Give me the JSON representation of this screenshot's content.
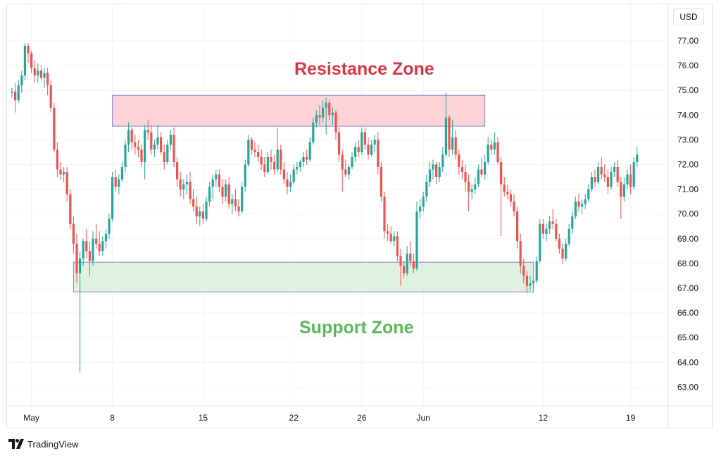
{
  "currency": "USD",
  "brand": "TradingView",
  "chart_data": {
    "type": "candlestick",
    "y_unit": "USD",
    "ylim": [
      62.3,
      78.3
    ],
    "y_ticks": [
      "77.00",
      "76.00",
      "75.00",
      "74.00",
      "73.00",
      "72.00",
      "71.00",
      "70.00",
      "69.00",
      "68.00",
      "67.00",
      "66.00",
      "65.00",
      "64.00",
      "63.00"
    ],
    "x_ticks": [
      "May",
      "8",
      "15",
      "22",
      "26",
      "Jun",
      "12",
      "19"
    ],
    "grid": true,
    "zones": [
      {
        "name": "Resistance Zone",
        "low": 73.55,
        "high": 74.8,
        "from_bar": 31,
        "to_bar": 146,
        "fill": "#fcd4d8",
        "stroke": "#8c7fc9",
        "label_color": "#dc3545"
      },
      {
        "name": "Support Zone",
        "low": 66.85,
        "high": 68.05,
        "from_bar": 19,
        "to_bar": 161,
        "fill": "#e0f2df",
        "stroke": "#8c7fc9",
        "label_color": "#5cb85c"
      }
    ],
    "candles": [
      [
        74.9,
        75.1,
        74.7,
        74.95
      ],
      [
        74.95,
        75.3,
        74.1,
        74.6
      ],
      [
        74.6,
        75.4,
        74.5,
        75.2
      ],
      [
        75.2,
        75.8,
        74.9,
        75.6
      ],
      [
        75.6,
        76.9,
        75.4,
        76.8
      ],
      [
        76.8,
        76.9,
        76.1,
        76.5
      ],
      [
        76.5,
        76.6,
        75.7,
        75.9
      ],
      [
        75.9,
        76.2,
        75.3,
        75.6
      ],
      [
        75.6,
        76.1,
        75.3,
        75.8
      ],
      [
        75.8,
        76.0,
        75.4,
        75.5
      ],
      [
        75.5,
        75.9,
        75.1,
        75.7
      ],
      [
        75.7,
        75.9,
        74.8,
        75.2
      ],
      [
        75.2,
        75.4,
        74.1,
        74.3
      ],
      [
        74.3,
        74.5,
        72.5,
        72.6
      ],
      [
        72.6,
        72.9,
        71.5,
        71.8
      ],
      [
        71.8,
        72.1,
        71.4,
        71.6
      ],
      [
        71.6,
        71.9,
        71.3,
        71.7
      ],
      [
        71.7,
        71.9,
        70.5,
        70.8
      ],
      [
        70.8,
        71.0,
        69.4,
        69.6
      ],
      [
        69.6,
        69.9,
        68.4,
        68.8
      ],
      [
        68.8,
        69.2,
        67.2,
        67.6
      ],
      [
        67.6,
        68.5,
        63.6,
        68.2
      ],
      [
        68.2,
        69.0,
        67.9,
        68.9
      ],
      [
        68.9,
        69.4,
        68.2,
        68.5
      ],
      [
        68.5,
        68.9,
        67.5,
        68.1
      ],
      [
        68.1,
        69.3,
        67.9,
        69.0
      ],
      [
        69.0,
        69.6,
        68.6,
        68.8
      ],
      [
        68.8,
        69.3,
        68.3,
        68.5
      ],
      [
        68.5,
        69.1,
        68.3,
        68.9
      ],
      [
        68.9,
        69.4,
        68.6,
        69.2
      ],
      [
        69.2,
        70.0,
        69.0,
        69.8
      ],
      [
        69.8,
        71.7,
        69.7,
        71.5
      ],
      [
        71.5,
        71.8,
        70.9,
        71.1
      ],
      [
        71.1,
        71.6,
        70.8,
        71.4
      ],
      [
        71.4,
        72.1,
        71.3,
        71.9
      ],
      [
        71.9,
        73.0,
        71.7,
        72.8
      ],
      [
        72.8,
        73.7,
        72.5,
        73.4
      ],
      [
        73.4,
        73.5,
        72.6,
        72.9
      ],
      [
        72.9,
        73.2,
        72.4,
        72.7
      ],
      [
        72.7,
        73.0,
        72.3,
        72.6
      ],
      [
        72.6,
        72.8,
        71.9,
        72.1
      ],
      [
        72.1,
        73.6,
        71.4,
        73.4
      ],
      [
        73.4,
        73.8,
        73.0,
        73.3
      ],
      [
        73.3,
        73.6,
        72.4,
        72.6
      ],
      [
        72.6,
        73.0,
        72.3,
        72.8
      ],
      [
        72.8,
        73.6,
        72.6,
        73.1
      ],
      [
        73.1,
        73.3,
        72.4,
        72.5
      ],
      [
        72.5,
        72.8,
        71.8,
        72.1
      ],
      [
        72.1,
        73.0,
        72.0,
        72.8
      ],
      [
        72.8,
        73.4,
        72.6,
        73.2
      ],
      [
        73.2,
        73.5,
        71.9,
        72.1
      ],
      [
        72.1,
        72.3,
        71.1,
        71.4
      ],
      [
        71.4,
        71.7,
        70.7,
        71.0
      ],
      [
        71.0,
        71.4,
        70.6,
        71.2
      ],
      [
        71.2,
        71.6,
        70.8,
        71.3
      ],
      [
        71.3,
        71.7,
        70.4,
        70.6
      ],
      [
        70.6,
        71.0,
        70.1,
        70.3
      ],
      [
        70.3,
        70.7,
        69.6,
        69.9
      ],
      [
        69.9,
        70.3,
        69.5,
        70.1
      ],
      [
        70.1,
        70.4,
        69.6,
        69.8
      ],
      [
        69.8,
        70.7,
        69.7,
        70.5
      ],
      [
        70.5,
        71.3,
        70.3,
        71.1
      ],
      [
        71.1,
        71.6,
        70.6,
        71.4
      ],
      [
        71.4,
        71.8,
        71.1,
        71.6
      ],
      [
        71.6,
        71.8,
        70.9,
        71.1
      ],
      [
        71.1,
        71.4,
        70.4,
        70.7
      ],
      [
        70.7,
        71.4,
        70.5,
        71.2
      ],
      [
        71.2,
        71.5,
        70.2,
        70.4
      ],
      [
        70.4,
        70.8,
        70.0,
        70.6
      ],
      [
        70.6,
        71.0,
        70.1,
        70.3
      ],
      [
        70.3,
        70.6,
        69.9,
        70.1
      ],
      [
        70.1,
        71.3,
        70.0,
        71.1
      ],
      [
        71.1,
        72.2,
        70.9,
        72.0
      ],
      [
        72.0,
        73.2,
        71.9,
        73.0
      ],
      [
        73.0,
        73.1,
        72.4,
        72.6
      ],
      [
        72.6,
        72.9,
        72.3,
        72.5
      ],
      [
        72.5,
        72.8,
        72.1,
        72.3
      ],
      [
        72.3,
        72.6,
        71.8,
        72.0
      ],
      [
        72.0,
        72.3,
        71.5,
        71.7
      ],
      [
        71.7,
        72.5,
        71.6,
        72.3
      ],
      [
        72.3,
        72.6,
        71.8,
        72.1
      ],
      [
        72.1,
        72.4,
        71.6,
        71.8
      ],
      [
        71.8,
        73.5,
        71.7,
        72.6
      ],
      [
        72.6,
        72.8,
        71.6,
        71.8
      ],
      [
        71.8,
        72.1,
        71.2,
        71.4
      ],
      [
        71.4,
        71.7,
        70.8,
        71.1
      ],
      [
        71.1,
        71.6,
        70.9,
        71.3
      ],
      [
        71.3,
        72.0,
        71.2,
        71.8
      ],
      [
        71.8,
        72.1,
        71.6,
        71.9
      ],
      [
        71.9,
        72.2,
        71.7,
        72.1
      ],
      [
        72.1,
        72.5,
        71.9,
        72.3
      ],
      [
        72.3,
        72.6,
        72.0,
        72.2
      ],
      [
        72.2,
        73.1,
        72.1,
        72.9
      ],
      [
        72.9,
        73.9,
        72.8,
        73.7
      ],
      [
        73.7,
        74.2,
        73.5,
        74.0
      ],
      [
        74.0,
        74.4,
        73.6,
        73.9
      ],
      [
        73.9,
        74.6,
        73.7,
        74.3
      ],
      [
        74.3,
        74.7,
        73.2,
        74.5
      ],
      [
        74.5,
        74.6,
        73.8,
        74.0
      ],
      [
        74.0,
        74.3,
        73.6,
        74.1
      ],
      [
        74.1,
        74.2,
        73.0,
        73.3
      ],
      [
        73.3,
        73.5,
        72.1,
        72.4
      ],
      [
        72.4,
        72.6,
        70.9,
        71.8
      ],
      [
        71.8,
        72.2,
        71.5,
        71.6
      ],
      [
        71.6,
        72.0,
        71.4,
        71.9
      ],
      [
        71.9,
        72.5,
        71.8,
        72.3
      ],
      [
        72.3,
        72.9,
        72.1,
        72.7
      ],
      [
        72.7,
        73.0,
        72.3,
        72.5
      ],
      [
        72.5,
        73.5,
        72.4,
        73.3
      ],
      [
        73.3,
        73.5,
        72.6,
        72.8
      ],
      [
        72.8,
        73.1,
        72.2,
        72.4
      ],
      [
        72.4,
        73.0,
        72.3,
        72.8
      ],
      [
        72.8,
        73.2,
        72.5,
        73.0
      ],
      [
        73.0,
        73.3,
        71.6,
        71.9
      ],
      [
        71.9,
        72.1,
        70.5,
        70.7
      ],
      [
        70.7,
        70.9,
        69.0,
        69.3
      ],
      [
        69.3,
        69.6,
        68.9,
        69.2
      ],
      [
        69.2,
        69.5,
        68.8,
        68.9
      ],
      [
        68.9,
        69.3,
        68.7,
        69.1
      ],
      [
        69.1,
        69.3,
        68.1,
        68.3
      ],
      [
        68.3,
        68.6,
        67.1,
        67.9
      ],
      [
        67.9,
        68.1,
        67.4,
        67.6
      ],
      [
        67.6,
        68.7,
        67.5,
        68.4
      ],
      [
        68.4,
        68.9,
        67.9,
        68.1
      ],
      [
        68.1,
        68.4,
        67.6,
        67.8
      ],
      [
        67.8,
        70.5,
        67.7,
        70.1
      ],
      [
        70.1,
        70.6,
        69.8,
        70.3
      ],
      [
        70.3,
        70.9,
        70.1,
        70.7
      ],
      [
        70.7,
        71.6,
        70.5,
        71.3
      ],
      [
        71.3,
        72.1,
        71.1,
        71.8
      ],
      [
        71.8,
        72.2,
        71.4,
        72.0
      ],
      [
        72.0,
        72.1,
        71.2,
        71.5
      ],
      [
        71.5,
        72.1,
        71.3,
        71.9
      ],
      [
        71.9,
        72.7,
        71.7,
        72.4
      ],
      [
        72.4,
        74.9,
        72.3,
        73.9
      ],
      [
        73.9,
        74.0,
        72.3,
        72.6
      ],
      [
        72.6,
        73.8,
        72.4,
        73.1
      ],
      [
        73.1,
        73.4,
        72.2,
        72.4
      ],
      [
        72.4,
        72.6,
        71.6,
        71.9
      ],
      [
        71.9,
        72.2,
        71.4,
        71.7
      ],
      [
        71.7,
        72.0,
        70.9,
        71.3
      ],
      [
        71.3,
        71.6,
        70.1,
        70.9
      ],
      [
        70.9,
        71.2,
        70.6,
        71.0
      ],
      [
        71.0,
        71.5,
        70.8,
        71.2
      ],
      [
        71.2,
        72.0,
        71.1,
        71.8
      ],
      [
        71.8,
        72.3,
        71.5,
        71.6
      ],
      [
        71.6,
        72.4,
        71.4,
        72.1
      ],
      [
        72.1,
        73.1,
        72.0,
        72.8
      ],
      [
        72.8,
        73.0,
        72.4,
        72.6
      ],
      [
        72.6,
        73.3,
        72.4,
        72.9
      ],
      [
        72.9,
        73.1,
        72.0,
        72.1
      ],
      [
        72.1,
        72.3,
        69.1,
        71.2
      ],
      [
        71.2,
        71.5,
        70.7,
        70.9
      ],
      [
        70.9,
        71.2,
        70.6,
        70.8
      ],
      [
        70.8,
        71.0,
        70.3,
        70.5
      ],
      [
        70.5,
        70.8,
        69.9,
        70.1
      ],
      [
        70.1,
        70.3,
        68.6,
        68.9
      ],
      [
        68.9,
        69.2,
        67.6,
        67.9
      ],
      [
        67.9,
        68.2,
        67.2,
        67.5
      ],
      [
        67.5,
        67.7,
        66.8,
        67.1
      ],
      [
        67.1,
        67.5,
        66.9,
        67.2
      ],
      [
        67.2,
        67.4,
        67.0,
        67.3
      ],
      [
        67.3,
        68.3,
        67.2,
        68.1
      ],
      [
        68.1,
        69.8,
        68.0,
        69.6
      ],
      [
        69.6,
        69.8,
        69.0,
        69.2
      ],
      [
        69.2,
        69.6,
        68.9,
        69.4
      ],
      [
        69.4,
        69.9,
        69.2,
        69.7
      ],
      [
        69.7,
        70.2,
        69.4,
        69.6
      ],
      [
        69.6,
        69.8,
        68.9,
        69.0
      ],
      [
        69.0,
        69.2,
        68.4,
        68.6
      ],
      [
        68.6,
        68.8,
        68.0,
        68.2
      ],
      [
        68.2,
        69.0,
        68.1,
        68.8
      ],
      [
        68.8,
        69.6,
        68.7,
        69.4
      ],
      [
        69.4,
        70.1,
        69.2,
        69.9
      ],
      [
        69.9,
        70.7,
        69.8,
        70.5
      ],
      [
        70.5,
        70.8,
        70.1,
        70.3
      ],
      [
        70.3,
        70.6,
        70.0,
        70.4
      ],
      [
        70.4,
        70.8,
        70.2,
        70.6
      ],
      [
        70.6,
        71.2,
        70.5,
        71.0
      ],
      [
        71.0,
        71.7,
        70.9,
        71.5
      ],
      [
        71.5,
        71.8,
        71.1,
        71.3
      ],
      [
        71.3,
        72.1,
        71.2,
        71.9
      ],
      [
        71.9,
        72.3,
        71.4,
        71.6
      ],
      [
        71.6,
        72.0,
        71.3,
        71.5
      ],
      [
        71.5,
        71.8,
        70.8,
        71.1
      ],
      [
        71.1,
        71.9,
        71.0,
        71.7
      ],
      [
        71.7,
        72.1,
        71.5,
        71.9
      ],
      [
        71.9,
        72.2,
        71.1,
        71.3
      ],
      [
        71.3,
        71.5,
        69.8,
        70.7
      ],
      [
        70.7,
        71.5,
        70.5,
        71.2
      ],
      [
        71.2,
        71.8,
        71.0,
        71.6
      ],
      [
        71.6,
        72.0,
        70.8,
        71.1
      ],
      [
        71.1,
        72.3,
        71.0,
        72.1
      ],
      [
        72.1,
        72.7,
        71.9,
        72.4
      ]
    ]
  }
}
